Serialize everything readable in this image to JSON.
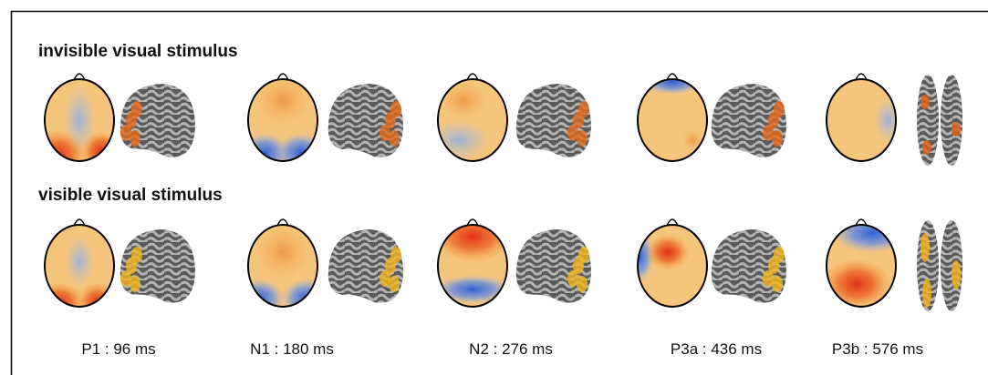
{
  "rows": [
    {
      "label": "invisible visual stimulus"
    },
    {
      "label": "visible visual stimulus"
    }
  ],
  "components": [
    "P1 : 96 ms",
    "N1 : 180 ms",
    "N2 : 276 ms",
    "P3a : 436 ms",
    "P3b : 576 ms"
  ]
}
